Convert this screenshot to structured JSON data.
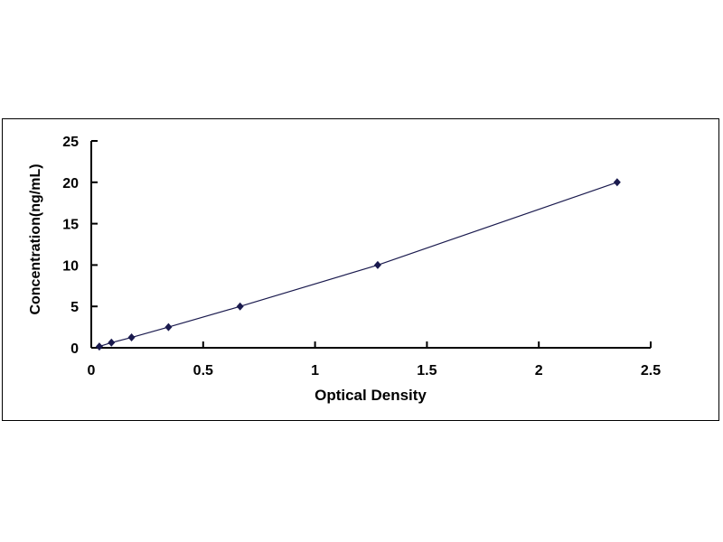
{
  "chart_data": {
    "type": "scatter",
    "title": "",
    "xlabel": "Optical Density",
    "ylabel": "Concentration(ng/mL)",
    "xlim": [
      0,
      2.5
    ],
    "ylim": [
      0,
      25
    ],
    "xticks": [
      "0",
      "0.5",
      "1",
      "1.5",
      "2",
      "2.5"
    ],
    "yticks": [
      "0",
      "5",
      "10",
      "15",
      "20",
      "25"
    ],
    "grid": false,
    "trendline": true,
    "marker": "diamond",
    "color": "#1a1a4e",
    "series": [
      {
        "x": [
          0.036,
          0.09,
          0.18,
          0.345,
          0.665,
          1.28,
          2.35
        ],
        "y": [
          0.156,
          0.625,
          1.25,
          2.5,
          5,
          10,
          20
        ]
      }
    ]
  }
}
